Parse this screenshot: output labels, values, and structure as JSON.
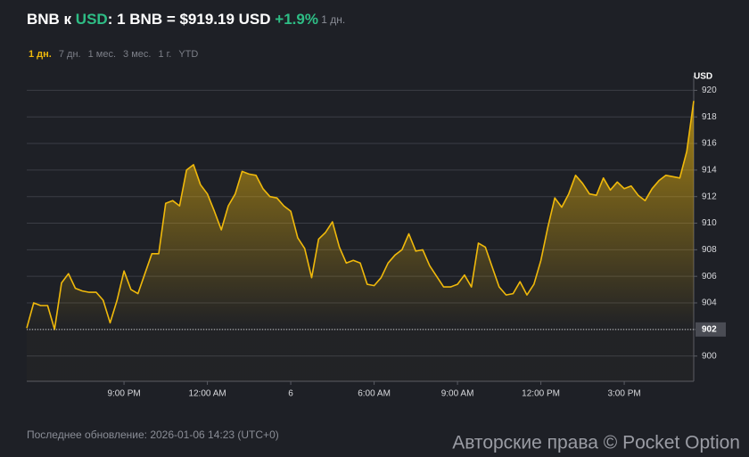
{
  "chart_data": {
    "type": "line",
    "title_parts": [
      "BNB к ",
      "USD",
      ": 1 BNB = $919.19 USD ",
      "+1.9%",
      " 1 дн."
    ],
    "ranges": [
      "1 дн.",
      "7 дн.",
      "1 мес.",
      "3 мес.",
      "1 г.",
      "YTD"
    ],
    "active_range": 0,
    "y_label": "USD",
    "color": "#f0b90b",
    "x": [
      17.5,
      17.75,
      18,
      18.25,
      18.5,
      18.75,
      19,
      19.25,
      19.5,
      19.75,
      20,
      20.25,
      20.5,
      20.75,
      21,
      21.25,
      21.5,
      21.75,
      22,
      22.25,
      22.5,
      22.75,
      23,
      23.25,
      23.5,
      23.75,
      24,
      24.25,
      24.5,
      24.75,
      25,
      25.25,
      25.5,
      25.75,
      26,
      26.25,
      26.5,
      26.75,
      27,
      27.25,
      27.5,
      27.75,
      28,
      28.25,
      28.5,
      28.75,
      29,
      29.25,
      29.5,
      29.75,
      30,
      30.25,
      30.5,
      30.75,
      31,
      31.25,
      31.5,
      31.75,
      32,
      32.25,
      32.5,
      32.75,
      33,
      33.25,
      33.5,
      33.75,
      34,
      34.25,
      34.5,
      34.75,
      35,
      35.25,
      35.5,
      35.75,
      36,
      36.25,
      36.5,
      36.75,
      37,
      37.25,
      37.5,
      37.75,
      38,
      38.25,
      38.5,
      38.75,
      39,
      39.25,
      39.5,
      39.75,
      40,
      40.25,
      40.5,
      40.75,
      41,
      41.25,
      41.5
    ],
    "values": [
      902.1,
      904.0,
      903.8,
      903.8,
      902.0,
      905.5,
      906.2,
      905.1,
      904.9,
      904.8,
      904.8,
      904.2,
      902.5,
      904.2,
      906.4,
      905.0,
      904.7,
      906.2,
      907.7,
      907.7,
      911.5,
      911.7,
      911.3,
      914.0,
      914.4,
      912.9,
      912.2,
      910.9,
      909.5,
      911.3,
      912.2,
      913.9,
      913.7,
      913.6,
      912.6,
      912.0,
      911.9,
      911.3,
      910.9,
      908.9,
      908.1,
      905.9,
      908.8,
      909.3,
      910.1,
      908.2,
      907.0,
      907.2,
      907.0,
      905.4,
      905.3,
      905.9,
      907.0,
      907.6,
      908.0,
      909.2,
      907.9,
      908.0,
      906.8,
      906.0,
      905.2,
      905.2,
      905.4,
      906.1,
      905.2,
      908.5,
      908.2,
      906.7,
      905.2,
      904.6,
      904.7,
      905.6,
      904.6,
      905.4,
      907.2,
      909.7,
      911.9,
      911.2,
      912.2,
      913.6,
      913.0,
      912.2,
      912.1,
      913.4,
      912.5,
      913.1,
      912.6,
      912.8,
      912.1,
      911.7,
      912.6,
      913.2,
      913.6,
      913.5,
      913.4,
      915.4,
      919.2
    ],
    "xlim": [
      17.5,
      41.5
    ],
    "xticks": [
      {
        "value": 21,
        "label": "9:00 PM"
      },
      {
        "value": 24,
        "label": "12:00 AM"
      },
      {
        "value": 27,
        "label": "6"
      },
      {
        "value": 30,
        "label": "6:00 AM"
      },
      {
        "value": 33,
        "label": "9:00 AM"
      },
      {
        "value": 36,
        "label": "12:00 PM"
      },
      {
        "value": 39,
        "label": "3:00 PM"
      }
    ],
    "ylim": [
      898.1,
      921.1
    ],
    "yticks": [
      900,
      902,
      904,
      906,
      908,
      910,
      912,
      914,
      916,
      918,
      920
    ],
    "reference_value": 902,
    "grid": true,
    "footer": "Последнее обновление: 2026-01-06 14:23 (UTC+0)",
    "watermark": "Авторские права © Pocket Option"
  }
}
